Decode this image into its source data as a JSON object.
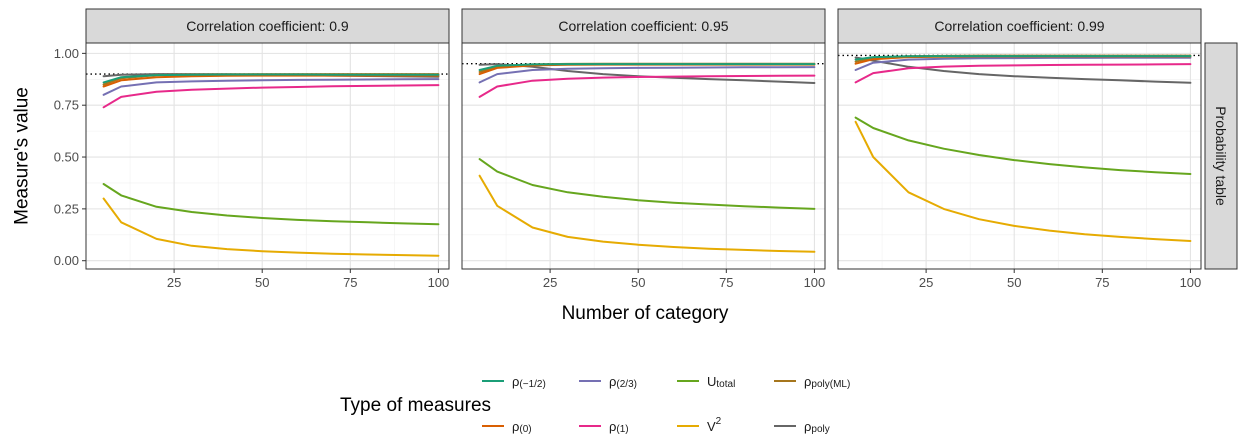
{
  "chart_data": {
    "type": "line",
    "xlabel": "Number of category",
    "ylabel": "Measure's value",
    "xlim": [
      0,
      103
    ],
    "ylim": [
      -0.04,
      1.05
    ],
    "x_ticks": [
      25,
      50,
      75,
      100
    ],
    "y_ticks": [
      0.0,
      0.25,
      0.5,
      0.75,
      1.0
    ],
    "y_tick_labels": [
      "0.00",
      "0.25",
      "0.50",
      "0.75",
      "1.00"
    ],
    "row_label": "Probability table",
    "grid": true,
    "legend": {
      "title": "Type of measures",
      "placement": "bottom"
    },
    "series_styles": [
      {
        "key": "rho_m12",
        "label_main": "ρ",
        "label_sub": "(−1/2)",
        "label_sup": "",
        "color": "#1B9E77"
      },
      {
        "key": "rho_0",
        "label_main": "ρ",
        "label_sub": "(0)",
        "label_sup": "",
        "color": "#D95F02"
      },
      {
        "key": "rho_23",
        "label_main": "ρ",
        "label_sub": "(2/3)",
        "label_sup": "",
        "color": "#7570B3"
      },
      {
        "key": "rho_1",
        "label_main": "ρ",
        "label_sub": "(1)",
        "label_sup": "",
        "color": "#E7298A"
      },
      {
        "key": "u_total",
        "label_main": "U",
        "label_sub": "total",
        "label_sup": "",
        "color": "#66A61E"
      },
      {
        "key": "v2",
        "label_main": "V",
        "label_sub": "",
        "label_sup": "2",
        "color": "#E6AB02"
      },
      {
        "key": "rho_poly_ml",
        "label_main": "ρ",
        "label_sub": "poly(ML)",
        "label_sup": "",
        "color": "#A6761D"
      },
      {
        "key": "rho_poly",
        "label_main": "ρ",
        "label_sub": "poly",
        "label_sup": "",
        "color": "#666666"
      }
    ],
    "panels": [
      {
        "strip": "Correlation coefficient: 0.9",
        "reference": 0.9,
        "x": [
          5,
          10,
          20,
          30,
          40,
          50,
          60,
          70,
          80,
          90,
          100
        ],
        "series": [
          {
            "key": "rho_m12",
            "values": [
              0.86,
              0.885,
              0.895,
              0.897,
              0.898,
              0.898,
              0.898,
              0.897,
              0.897,
              0.897,
              0.897
            ]
          },
          {
            "key": "rho_0",
            "values": [
              0.84,
              0.87,
              0.885,
              0.89,
              0.892,
              0.893,
              0.893,
              0.893,
              0.893,
              0.893,
              0.893
            ]
          },
          {
            "key": "rho_23",
            "values": [
              0.8,
              0.84,
              0.86,
              0.865,
              0.868,
              0.87,
              0.872,
              0.873,
              0.874,
              0.875,
              0.876
            ]
          },
          {
            "key": "rho_1",
            "values": [
              0.74,
              0.79,
              0.815,
              0.825,
              0.83,
              0.835,
              0.838,
              0.841,
              0.843,
              0.845,
              0.847
            ]
          },
          {
            "key": "u_total",
            "values": [
              0.37,
              0.315,
              0.26,
              0.235,
              0.218,
              0.206,
              0.197,
              0.19,
              0.185,
              0.18,
              0.176
            ]
          },
          {
            "key": "v2",
            "values": [
              0.3,
              0.185,
              0.105,
              0.072,
              0.056,
              0.046,
              0.039,
              0.034,
              0.03,
              0.027,
              0.024
            ]
          },
          {
            "key": "rho_poly_ml",
            "values": [
              0.85,
              0.88,
              0.895,
              0.898,
              0.899,
              0.9,
              0.9,
              0.9,
              0.9,
              0.9,
              0.9
            ]
          },
          {
            "key": "rho_poly",
            "values": [
              0.89,
              0.897,
              0.9,
              0.9,
              0.899,
              0.897,
              0.895,
              0.893,
              0.891,
              0.889,
              0.887
            ]
          }
        ]
      },
      {
        "strip": "Correlation coefficient: 0.95",
        "reference": 0.95,
        "x": [
          5,
          10,
          20,
          30,
          40,
          50,
          60,
          70,
          80,
          90,
          100
        ],
        "series": [
          {
            "key": "rho_m12",
            "values": [
              0.92,
              0.94,
              0.947,
              0.948,
              0.948,
              0.948,
              0.948,
              0.948,
              0.948,
              0.948,
              0.948
            ]
          },
          {
            "key": "rho_0",
            "values": [
              0.9,
              0.93,
              0.942,
              0.945,
              0.946,
              0.946,
              0.946,
              0.946,
              0.946,
              0.946,
              0.946
            ]
          },
          {
            "key": "rho_23",
            "values": [
              0.86,
              0.9,
              0.92,
              0.926,
              0.928,
              0.93,
              0.931,
              0.932,
              0.933,
              0.933,
              0.934
            ]
          },
          {
            "key": "rho_1",
            "values": [
              0.79,
              0.84,
              0.868,
              0.878,
              0.883,
              0.886,
              0.888,
              0.89,
              0.891,
              0.892,
              0.893
            ]
          },
          {
            "key": "u_total",
            "values": [
              0.49,
              0.43,
              0.365,
              0.33,
              0.308,
              0.292,
              0.28,
              0.271,
              0.263,
              0.256,
              0.25
            ]
          },
          {
            "key": "v2",
            "values": [
              0.41,
              0.265,
              0.16,
              0.115,
              0.092,
              0.077,
              0.066,
              0.058,
              0.052,
              0.047,
              0.043
            ]
          },
          {
            "key": "rho_poly_ml",
            "values": [
              0.91,
              0.935,
              0.947,
              0.949,
              0.95,
              0.95,
              0.95,
              0.95,
              0.95,
              0.95,
              0.95
            ]
          },
          {
            "key": "rho_poly",
            "values": [
              0.945,
              0.948,
              0.935,
              0.915,
              0.9,
              0.89,
              0.882,
              0.876,
              0.87,
              0.864,
              0.857
            ]
          }
        ]
      },
      {
        "strip": "Correlation coefficient: 0.99",
        "reference": 0.99,
        "x": [
          5,
          10,
          20,
          30,
          40,
          50,
          60,
          70,
          80,
          90,
          100
        ],
        "series": [
          {
            "key": "rho_m12",
            "values": [
              0.97,
              0.982,
              0.986,
              0.987,
              0.987,
              0.987,
              0.987,
              0.987,
              0.987,
              0.987,
              0.987
            ]
          },
          {
            "key": "rho_0",
            "values": [
              0.95,
              0.972,
              0.982,
              0.984,
              0.985,
              0.985,
              0.985,
              0.985,
              0.985,
              0.985,
              0.985
            ]
          },
          {
            "key": "rho_23",
            "values": [
              0.92,
              0.955,
              0.97,
              0.974,
              0.976,
              0.977,
              0.978,
              0.978,
              0.979,
              0.979,
              0.979
            ]
          },
          {
            "key": "rho_1",
            "values": [
              0.86,
              0.905,
              0.928,
              0.936,
              0.94,
              0.942,
              0.944,
              0.945,
              0.946,
              0.947,
              0.948
            ]
          },
          {
            "key": "u_total",
            "values": [
              0.69,
              0.64,
              0.58,
              0.54,
              0.51,
              0.485,
              0.466,
              0.45,
              0.437,
              0.427,
              0.418
            ]
          },
          {
            "key": "v2",
            "values": [
              0.67,
              0.5,
              0.33,
              0.25,
              0.2,
              0.168,
              0.145,
              0.128,
              0.115,
              0.104,
              0.095
            ]
          },
          {
            "key": "rho_poly_ml",
            "values": [
              0.96,
              0.978,
              0.986,
              0.988,
              0.989,
              0.989,
              0.989,
              0.989,
              0.989,
              0.989,
              0.989
            ]
          },
          {
            "key": "rho_poly",
            "values": [
              0.98,
              0.965,
              0.935,
              0.915,
              0.9,
              0.89,
              0.882,
              0.876,
              0.87,
              0.864,
              0.858
            ]
          }
        ]
      }
    ]
  }
}
